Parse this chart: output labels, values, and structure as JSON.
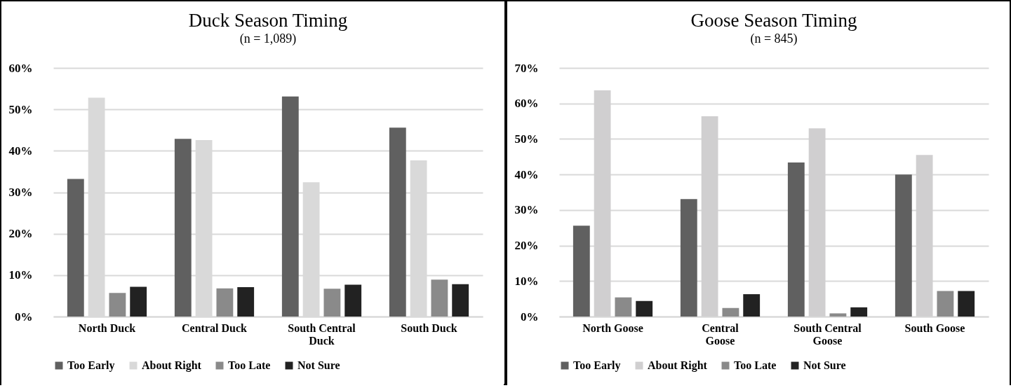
{
  "chart_data": [
    {
      "type": "bar",
      "title": "Duck Season Timing",
      "subtitle": "(n = 1,089)",
      "categories": [
        "North Duck",
        "Central Duck",
        "South Central Duck",
        "South Duck"
      ],
      "series": [
        {
          "name": "Too Early",
          "color": "#606060",
          "values": [
            33.2,
            42.9,
            53.1,
            45.6
          ]
        },
        {
          "name": "About Right",
          "color": "#d9d9d9",
          "values": [
            52.8,
            42.6,
            32.4,
            37.7
          ]
        },
        {
          "name": "Too Late",
          "color": "#8a8a8a",
          "values": [
            5.7,
            6.8,
            6.7,
            8.9
          ]
        },
        {
          "name": "Not Sure",
          "color": "#222222",
          "values": [
            7.2,
            7.1,
            7.7,
            7.8
          ]
        }
      ],
      "ylim": [
        0,
        60
      ],
      "yticks": [
        {
          "value": 0,
          "label": "0%"
        },
        {
          "value": 10,
          "label": "10%"
        },
        {
          "value": 20,
          "label": "20%"
        },
        {
          "value": 30,
          "label": "30%"
        },
        {
          "value": 40,
          "label": "40%"
        },
        {
          "value": 50,
          "label": "50%"
        },
        {
          "value": 60,
          "label": "60%"
        }
      ],
      "grid": "y",
      "legend": "bottom"
    },
    {
      "type": "bar",
      "title": "Goose Season Timing",
      "subtitle": "(n = 845)",
      "categories": [
        "North Goose",
        "Central Goose",
        "South Central Goose",
        "South Goose"
      ],
      "series": [
        {
          "name": "Too Early",
          "color": "#606060",
          "values": [
            25.6,
            33.1,
            43.4,
            40.0
          ]
        },
        {
          "name": "About Right",
          "color": "#d0cfd0",
          "values": [
            63.7,
            56.4,
            53.0,
            45.5
          ]
        },
        {
          "name": "Too Late",
          "color": "#8a8a8a",
          "values": [
            5.4,
            2.4,
            0.9,
            7.2
          ]
        },
        {
          "name": "Not Sure",
          "color": "#222222",
          "values": [
            4.4,
            6.3,
            2.6,
            7.2
          ]
        }
      ],
      "ylim": [
        0,
        70
      ],
      "yticks": [
        {
          "value": 0,
          "label": "0%"
        },
        {
          "value": 10,
          "label": "10%"
        },
        {
          "value": 20,
          "label": "20%"
        },
        {
          "value": 30,
          "label": "30%"
        },
        {
          "value": 40,
          "label": "40%"
        },
        {
          "value": 50,
          "label": "50%"
        },
        {
          "value": 60,
          "label": "60%"
        },
        {
          "value": 70,
          "label": "70%"
        }
      ],
      "grid": "y",
      "legend": "bottom"
    }
  ]
}
